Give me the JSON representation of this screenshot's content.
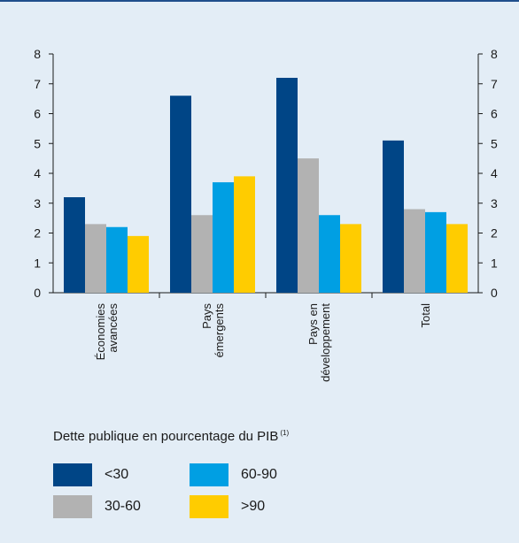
{
  "chart_data": {
    "type": "bar",
    "categories": [
      "Économies avancées",
      "Pays émergents",
      "Pays en développement",
      "Total"
    ],
    "category_label_lines": [
      [
        "Économies",
        "avancées"
      ],
      [
        "Pays",
        "émergents"
      ],
      [
        "Pays en",
        "développement"
      ],
      [
        "Total"
      ]
    ],
    "series": [
      {
        "name": "<30",
        "color": "#004586",
        "values": [
          3.2,
          6.6,
          7.2,
          5.1
        ]
      },
      {
        "name": "30-60",
        "color": "#b2b2b2",
        "values": [
          2.3,
          2.6,
          4.5,
          2.8
        ]
      },
      {
        "name": "60-90",
        "color": "#009fe3",
        "values": [
          2.2,
          3.7,
          2.6,
          2.7
        ]
      },
      {
        "name": ">90",
        "color": "#ffcc00",
        "values": [
          1.9,
          3.9,
          2.3,
          2.3
        ]
      }
    ],
    "ylim": [
      0,
      8
    ],
    "yticks": [
      "0",
      "1",
      "2",
      "3",
      "4",
      "5",
      "6",
      "7",
      "8"
    ],
    "dual_y_axis": true,
    "grid": false,
    "legend_position": "bottom"
  },
  "legend": {
    "title": "Dette publique en pourcentage du PIB",
    "title_note": "(1)"
  }
}
